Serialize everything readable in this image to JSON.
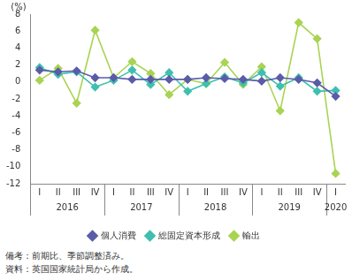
{
  "chart_data": {
    "type": "line",
    "y_label": "(%)",
    "categories": [
      "I",
      "II",
      "III",
      "IV",
      "I",
      "II",
      "III",
      "IV",
      "I",
      "II",
      "III",
      "IV",
      "I",
      "II",
      "III",
      "IV",
      "I"
    ],
    "category_groups": [
      "2016",
      "2016",
      "2016",
      "2016",
      "2017",
      "2017",
      "2017",
      "2017",
      "2018",
      "2018",
      "2018",
      "2018",
      "2019",
      "2019",
      "2019",
      "2019",
      "2020"
    ],
    "series": [
      {
        "name": "個人消費",
        "color": "#5a5ca8",
        "values": [
          1.4,
          1.2,
          1.3,
          0.5,
          0.5,
          0.3,
          0.3,
          0.3,
          0.3,
          0.5,
          0.4,
          0.3,
          0.1,
          0.5,
          0.3,
          -0.1,
          -1.7
        ]
      },
      {
        "name": "総固定資本形成",
        "color": "#3fbfb0",
        "values": [
          1.7,
          0.9,
          1.2,
          -0.6,
          0.2,
          1.4,
          -0.3,
          1.1,
          -1.1,
          -0.2,
          0.6,
          -0.1,
          1.1,
          -0.5,
          0.5,
          -1.1,
          -1.0
        ]
      },
      {
        "name": "輸出",
        "color": "#a9d352",
        "values": [
          0.2,
          1.6,
          -2.5,
          6.1,
          0.5,
          2.4,
          1.0,
          -1.5,
          0.3,
          -0.2,
          2.3,
          -0.3,
          1.8,
          -3.4,
          7.0,
          5.1,
          -10.8
        ]
      }
    ],
    "ylim": [
      -12,
      8
    ],
    "yticks": [
      -12,
      -10,
      -8,
      -6,
      -4,
      -2,
      0,
      2,
      4,
      6,
      8
    ],
    "grid": false,
    "legend": "bottom",
    "marker": "diamond",
    "notes": [
      "備考：前期比、季節調整済み。",
      "資料：英国国家統計局から作成。"
    ]
  }
}
